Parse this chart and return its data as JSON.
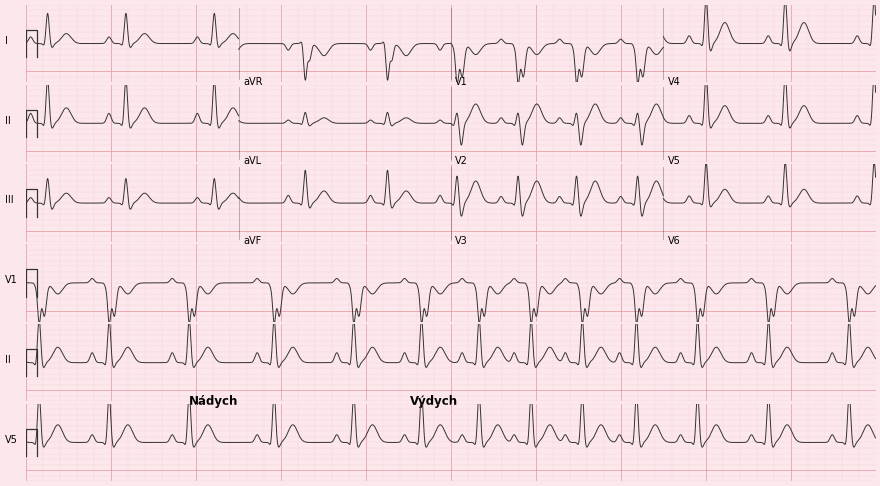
{
  "bg_color": "#fce8ec",
  "grid_major_color": "#e8a0a8",
  "grid_minor_color": "#f5d0d5",
  "line_color": "#333333",
  "text_color": "#000000",
  "fig_width": 8.8,
  "fig_height": 4.86,
  "dpi": 100,
  "rows": 6,
  "row_labels": [
    "I",
    "II",
    "III",
    "V1",
    "II",
    "V5"
  ],
  "nadych_text": "Nádych",
  "vydych_text": "Výdych",
  "col_labels_row0": [
    "aVR",
    "V1",
    "V4"
  ],
  "col_labels_row1": [
    "aVL",
    "V2",
    "V5"
  ],
  "col_labels_row2": [
    "aVF",
    "V3",
    "V6"
  ]
}
